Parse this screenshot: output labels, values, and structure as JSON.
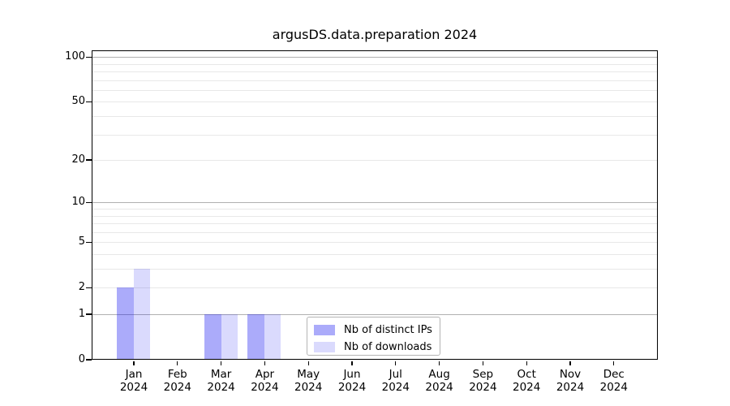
{
  "title": "argusDS.data.preparation 2024",
  "chart_data": {
    "type": "bar",
    "title": "argusDS.data.preparation 2024",
    "categories": [
      "Jan 2024",
      "Feb 2024",
      "Mar 2024",
      "Apr 2024",
      "May 2024",
      "Jun 2024",
      "Jul 2024",
      "Aug 2024",
      "Sep 2024",
      "Oct 2024",
      "Nov 2024",
      "Dec 2024"
    ],
    "series": [
      {
        "name": "Nb of distinct IPs",
        "color": "rgba(10,10,240,0.34)",
        "approx_hex": "#a8a8f8",
        "values": [
          2,
          0,
          1,
          1,
          0,
          0,
          0,
          0,
          0,
          0,
          0,
          0
        ]
      },
      {
        "name": "Nb of downloads",
        "color": "rgba(10,10,240,0.15)",
        "approx_hex": "#d9d9f7",
        "values": [
          3,
          0,
          1,
          1,
          0,
          0,
          0,
          0,
          0,
          0,
          0,
          0
        ]
      }
    ],
    "xlabel": "",
    "ylabel": "",
    "y_axis": {
      "scale": "log1p",
      "tick_values": [
        0,
        1,
        2,
        5,
        10,
        20,
        50,
        100
      ],
      "tick_labels": [
        "0",
        "1",
        "2",
        "5",
        "10",
        "20",
        "50",
        "100"
      ],
      "major_grid": [
        1,
        10,
        100
      ],
      "minor_grid": [
        2,
        3,
        4,
        5,
        6,
        7,
        8,
        9,
        20,
        30,
        40,
        50,
        60,
        70,
        80,
        90
      ],
      "ylim": [
        0,
        110
      ]
    },
    "grid": "on",
    "legend": {
      "position": "lower center",
      "entries": [
        "Nb of distinct IPs",
        "Nb of downloads"
      ]
    }
  },
  "colors": {
    "background": "#ffffff",
    "spine": "#000000",
    "text": "#000000",
    "major_grid": "#b0b0b0",
    "minor_grid": "#e8e8e8",
    "legend_border": "#b4b4b4"
  }
}
